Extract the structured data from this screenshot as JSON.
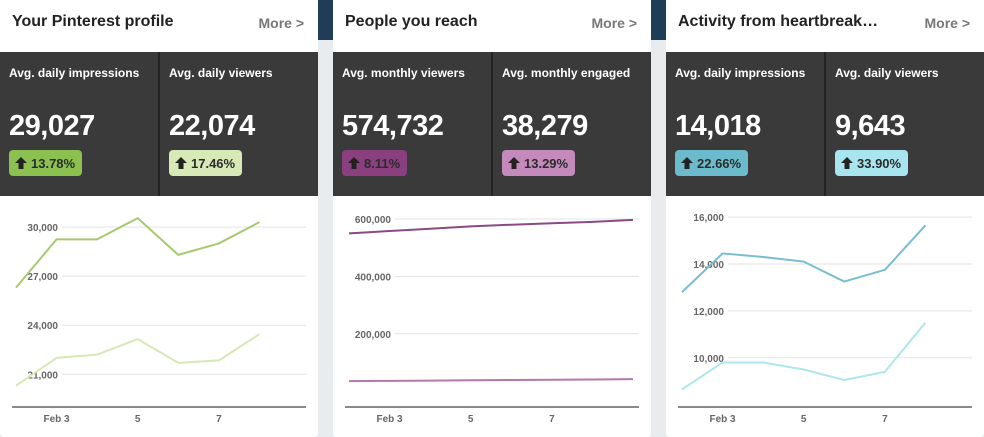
{
  "cards": [
    {
      "title": "Your Pinterest profile",
      "more": "More >",
      "stats": [
        {
          "label": "Avg. daily impressions",
          "value": "29,027",
          "change": "13.78%",
          "badge_color": "#8cc152",
          "badge_text_color": "#2b2b2b"
        },
        {
          "label": "Avg. daily viewers",
          "value": "22,074",
          "change": "17.46%",
          "badge_color": "#d6e9b6",
          "badge_text_color": "#2b2b2b"
        }
      ],
      "chart_data": {
        "type": "line",
        "x_labels": [
          "Feb 3",
          "5",
          "7"
        ],
        "y_ticks": [
          "30,000",
          "27,000",
          "24,000",
          "21,000"
        ],
        "y_tick_values": [
          30000,
          27000,
          24000,
          21000
        ],
        "ylim": [
          19000,
          31900
        ],
        "x": [
          1,
          2,
          3,
          4,
          5,
          6,
          7,
          8
        ],
        "x_label_positions": [
          2,
          4,
          6
        ],
        "series": [
          {
            "values": [
              26300,
              29250,
              29250,
              30550,
              28300,
              29000,
              30300,
              null
            ],
            "color": "#a6c96f"
          },
          {
            "values": [
              20300,
              22000,
              22200,
              23150,
              21700,
              21850,
              23450,
              null
            ],
            "color": "#d8e8b5"
          }
        ],
        "grid": true
      }
    },
    {
      "title": "People you reach",
      "more": "More >",
      "stats": [
        {
          "label": "Avg. monthly viewers",
          "value": "574,732",
          "change": "8.11%",
          "badge_color": "#8a3f7e",
          "badge_text_color": "#2b2b2b"
        },
        {
          "label": "Avg. monthly engaged",
          "value": "38,279",
          "change": "13.29%",
          "badge_color": "#c58abc",
          "badge_text_color": "#2b2b2b"
        }
      ],
      "chart_data": {
        "type": "line",
        "x_labels": [
          "Feb 3",
          "5",
          "7"
        ],
        "y_ticks": [
          "600,000",
          "400,000",
          "200,000"
        ],
        "y_tick_values": [
          600000,
          400000,
          200000
        ],
        "ylim": [
          -55000,
          680000
        ],
        "x": [
          1,
          2,
          3,
          4,
          5,
          6,
          7,
          8
        ],
        "x_label_positions": [
          2,
          4,
          6
        ],
        "series": [
          {
            "values": [
              550000,
              558000,
              566000,
              574000,
              580000,
              585000,
              590000,
              597000
            ],
            "color": "#8a4a86"
          },
          {
            "values": [
              35000,
              36000,
              37000,
              38000,
              39000,
              40000,
              41000,
              42000
            ],
            "color": "#b378ad"
          }
        ],
        "grid": true
      }
    },
    {
      "title": "Activity from heartbreak…",
      "more": "More >",
      "stats": [
        {
          "label": "Avg. daily impressions",
          "value": "14,018",
          "change": "22.66%",
          "badge_color": "#6bbbcc",
          "badge_text_color": "#2b2b2b"
        },
        {
          "label": "Avg. daily viewers",
          "value": "9,643",
          "change": "33.90%",
          "badge_color": "#a8e5ef",
          "badge_text_color": "#2b2b2b"
        }
      ],
      "chart_data": {
        "type": "line",
        "x_labels": [
          "Feb 3",
          "5",
          "7"
        ],
        "y_ticks": [
          "16,000",
          "14,000",
          "12,000",
          "10,000"
        ],
        "y_tick_values": [
          16000,
          14000,
          12000,
          10000
        ],
        "ylim": [
          7900,
          16900
        ],
        "x": [
          1,
          2,
          3,
          4,
          5,
          6,
          7,
          8
        ],
        "x_label_positions": [
          2,
          4,
          6
        ],
        "series": [
          {
            "values": [
              12800,
              14450,
              14300,
              14100,
              13250,
              13750,
              15650,
              null
            ],
            "color": "#78bdd0"
          },
          {
            "values": [
              8650,
              9800,
              9800,
              9500,
              9050,
              9400,
              11500,
              null
            ],
            "color": "#aee6f0"
          }
        ],
        "grid": true
      }
    }
  ]
}
